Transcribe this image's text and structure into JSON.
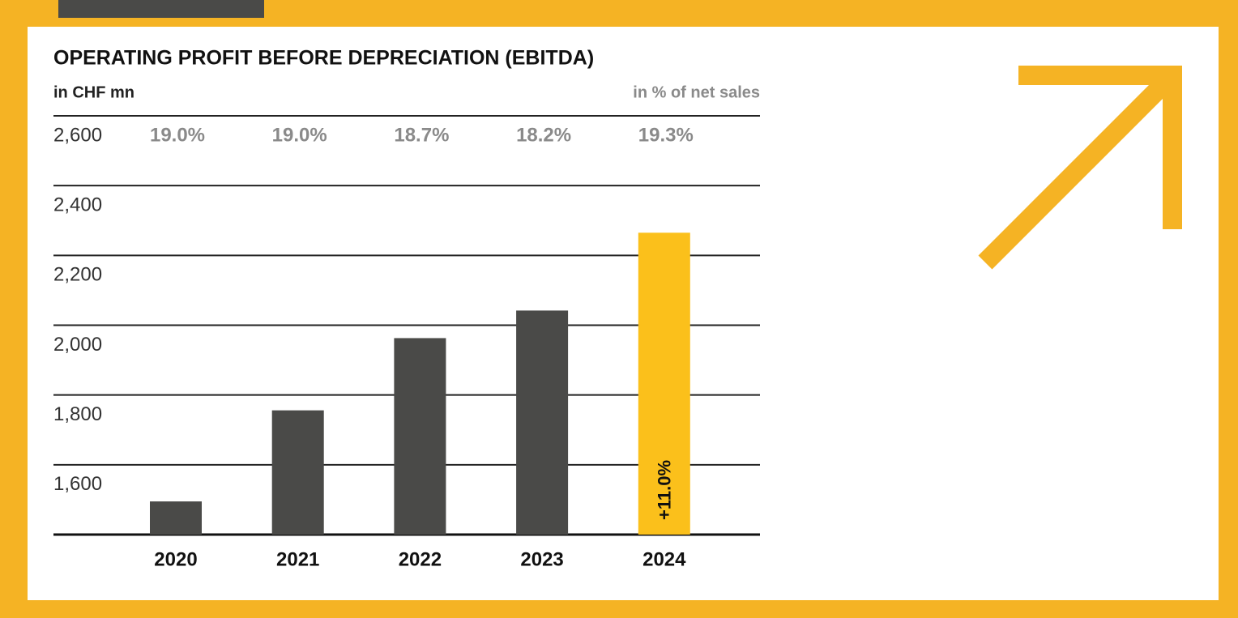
{
  "chart_data": {
    "type": "bar",
    "title": "OPERATING PROFIT BEFORE DEPRECIATION (EBITDA)",
    "y_axis_label": "in CHF mn",
    "categories": [
      "2020",
      "2021",
      "2022",
      "2023",
      "2024"
    ],
    "values": [
      1495,
      1756,
      1963,
      2042,
      2265
    ],
    "colors": [
      "#4a4a48",
      "#4a4a48",
      "#4a4a48",
      "#4a4a48",
      "#fbc01b"
    ],
    "ylim": [
      1400,
      2600
    ],
    "yticks": [
      {
        "value": 1600,
        "label": "1,600"
      },
      {
        "value": 1800,
        "label": "1,800"
      },
      {
        "value": 2000,
        "label": "2,000"
      },
      {
        "value": 2200,
        "label": "2,200"
      },
      {
        "value": 2400,
        "label": "2,400"
      },
      {
        "value": 2600,
        "label": "2,600"
      }
    ],
    "grid": true,
    "net_sales_share": {
      "label": "in % of net sales",
      "values": [
        19.0,
        19.0,
        18.7,
        18.2,
        19.3
      ],
      "value_labels": [
        "19.0%",
        "19.0%",
        "18.7%",
        "18.2%",
        "19.3%"
      ]
    },
    "annotation": "+11.0%"
  }
}
